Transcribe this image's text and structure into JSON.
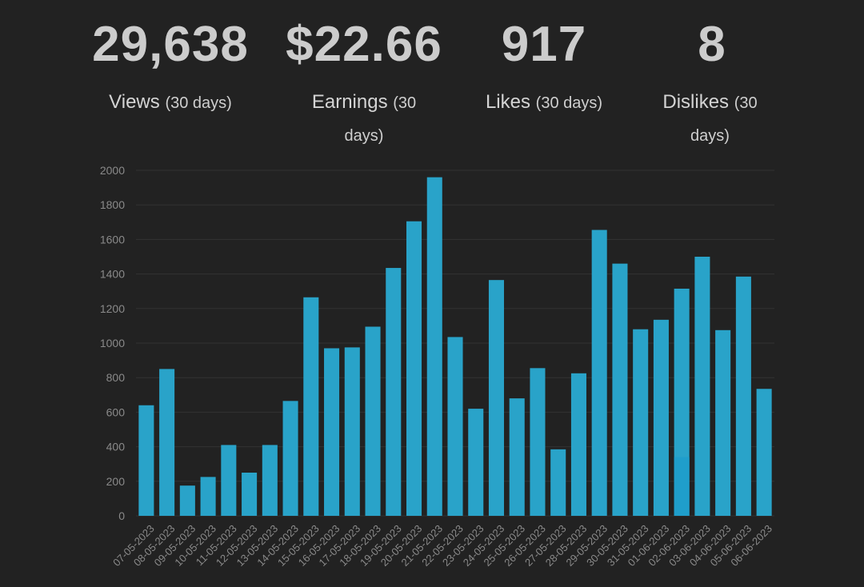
{
  "stats": [
    {
      "value": "29,638",
      "label": "Views",
      "sub": "(30 days)"
    },
    {
      "value": "$22.66",
      "label": "Earnings",
      "sub": "(30 days)"
    },
    {
      "value": "917",
      "label": "Likes",
      "sub": "(30 days)"
    },
    {
      "value": "8",
      "label": "Dislikes",
      "sub": "(30 days)"
    }
  ],
  "colors": {
    "background": "#222222",
    "bar": "#29a3c9",
    "bar_highlight": "#1f9ecb",
    "grid": "#333333",
    "axis_text": "#8a8a8a"
  },
  "chart_data": {
    "type": "bar",
    "title": "",
    "xlabel": "",
    "ylabel": "",
    "ylim": [
      0,
      2000
    ],
    "yticks": [
      0,
      200,
      400,
      600,
      800,
      1000,
      1200,
      1400,
      1600,
      1800,
      2000
    ],
    "grid": true,
    "categories": [
      "07-05-2023",
      "08-05-2023",
      "09-05-2023",
      "10-05-2023",
      "11-05-2023",
      "12-05-2023",
      "13-05-2023",
      "14-05-2023",
      "15-05-2023",
      "16-05-2023",
      "17-05-2023",
      "18-05-2023",
      "19-05-2023",
      "20-05-2023",
      "21-05-2023",
      "22-05-2023",
      "23-05-2023",
      "24-05-2023",
      "25-05-2023",
      "26-05-2023",
      "27-05-2023",
      "28-05-2023",
      "29-05-2023",
      "30-05-2023",
      "31-05-2023",
      "01-06-2023",
      "02-06-2023",
      "03-06-2023",
      "04-06-2023",
      "05-06-2023",
      "06-06-2023"
    ],
    "values": [
      640,
      850,
      175,
      225,
      410,
      250,
      410,
      665,
      1265,
      970,
      975,
      1095,
      1435,
      1705,
      1960,
      1035,
      620,
      1365,
      680,
      855,
      385,
      825,
      1655,
      1460,
      1080,
      1135,
      1315,
      1500,
      1075,
      1385,
      735
    ],
    "highlight_segment": {
      "category": "02-06-2023",
      "value": 340
    }
  }
}
